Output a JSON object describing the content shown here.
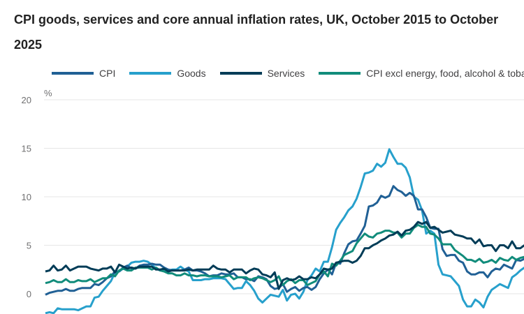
{
  "chart_data": {
    "type": "line",
    "title": "CPI goods, services and core annual inflation rates, UK, October 2015 to October 2025",
    "ylabel": "%",
    "ylim": [
      -2,
      20
    ],
    "yticks": [
      "20",
      "15",
      "10",
      "5",
      "0"
    ],
    "ytick_values": [
      20,
      15,
      10,
      5,
      0
    ],
    "grid": true,
    "legend": "top",
    "x_start": "Oct 2015",
    "x_frequency": "monthly",
    "series": [
      {
        "name": "CPI",
        "color": "#206095",
        "values": [
          -0.1,
          0.1,
          0.2,
          0.3,
          0.3,
          0.5,
          0.3,
          0.3,
          0.5,
          0.6,
          0.6,
          0.6,
          1.0,
          0.9,
          1.2,
          1.6,
          1.8,
          2.3,
          2.3,
          2.7,
          2.9,
          2.6,
          2.6,
          2.9,
          3.0,
          3.0,
          3.1,
          3.0,
          3.0,
          2.7,
          2.5,
          2.4,
          2.4,
          2.4,
          2.5,
          2.7,
          2.4,
          2.4,
          2.3,
          2.1,
          1.8,
          1.9,
          1.9,
          2.1,
          2.0,
          2.0,
          2.1,
          1.7,
          1.7,
          1.5,
          1.5,
          1.3,
          1.8,
          1.7,
          1.5,
          0.8,
          0.5,
          0.6,
          1.0,
          0.2,
          0.5,
          0.7,
          0.3,
          0.6,
          0.7,
          0.4,
          0.7,
          1.5,
          2.1,
          2.5,
          2.0,
          3.2,
          3.1,
          4.2,
          5.1,
          5.4,
          5.5,
          6.2,
          7.0,
          9.0,
          9.1,
          9.4,
          10.1,
          9.9,
          10.1,
          11.1,
          10.7,
          10.5,
          10.1,
          10.4,
          10.1,
          8.7,
          8.7,
          7.9,
          6.8,
          6.7,
          6.7,
          4.6,
          3.9,
          4.0,
          4.0,
          3.4,
          3.2,
          2.3,
          2.0,
          2.0,
          2.2,
          2.2,
          1.7,
          2.3,
          2.6,
          2.5,
          3.0,
          2.8,
          2.6,
          3.5,
          3.4,
          3.6,
          3.8,
          3.8,
          3.8,
          3.6
        ]
      },
      {
        "name": "Goods",
        "color": "#27a0cc",
        "values": [
          -2.0,
          -1.9,
          -2.0,
          -1.5,
          -1.6,
          -1.6,
          -1.6,
          -1.6,
          -1.7,
          -1.5,
          -1.3,
          -1.3,
          -0.4,
          -0.3,
          0.3,
          0.8,
          1.3,
          2.2,
          2.3,
          2.6,
          2.8,
          3.2,
          3.3,
          3.3,
          3.4,
          3.3,
          3.0,
          2.6,
          2.4,
          2.4,
          2.4,
          2.5,
          2.5,
          2.8,
          2.5,
          2.3,
          1.4,
          1.4,
          1.4,
          1.5,
          1.5,
          1.6,
          1.6,
          1.6,
          1.5,
          1.0,
          0.5,
          0.6,
          0.6,
          1.3,
          0.9,
          0.3,
          -0.5,
          -0.9,
          -0.5,
          -0.1,
          -0.2,
          -0.3,
          0.4,
          -0.7,
          -0.1,
          0.0,
          -0.5,
          0.2,
          1.4,
          1.9,
          2.6,
          2.3,
          3.3,
          3.3,
          4.8,
          6.6,
          7.3,
          7.9,
          8.6,
          9.0,
          9.8,
          11.0,
          12.4,
          12.5,
          12.7,
          13.4,
          13.1,
          13.5,
          14.9,
          14.1,
          13.4,
          13.4,
          13.0,
          12.0,
          10.0,
          9.7,
          8.6,
          6.2,
          6.5,
          6.2,
          3.0,
          2.0,
          1.9,
          1.8,
          1.3,
          0.8,
          -0.6,
          -1.3,
          -1.3,
          -0.6,
          -0.9,
          -1.4,
          -0.3,
          0.4,
          0.7,
          1.0,
          0.8,
          0.6,
          1.7,
          2.0,
          2.4,
          2.7,
          2.8,
          2.9,
          2.6
        ]
      },
      {
        "name": "Services",
        "color": "#003c57",
        "values": [
          2.3,
          2.4,
          2.9,
          2.4,
          2.5,
          2.9,
          2.4,
          2.6,
          2.8,
          2.8,
          2.8,
          2.6,
          2.5,
          2.4,
          2.6,
          2.6,
          2.8,
          2.2,
          3.0,
          2.8,
          2.6,
          2.7,
          2.6,
          2.8,
          2.8,
          2.8,
          2.8,
          2.5,
          2.5,
          2.6,
          2.3,
          2.4,
          2.4,
          2.4,
          2.4,
          2.5,
          2.4,
          2.5,
          2.5,
          2.5,
          2.5,
          2.9,
          2.6,
          2.5,
          2.5,
          2.2,
          2.5,
          2.5,
          2.5,
          2.1,
          2.4,
          2.6,
          2.5,
          2.0,
          1.9,
          1.7,
          2.2,
          0.5,
          1.4,
          1.6,
          1.4,
          1.5,
          1.8,
          1.5,
          1.5,
          1.7,
          1.6,
          2.0,
          2.6,
          2.5,
          2.6,
          3.2,
          3.3,
          3.4,
          3.4,
          3.2,
          3.4,
          3.9,
          4.7,
          4.7,
          5.0,
          5.2,
          5.5,
          5.7,
          6.0,
          6.1,
          6.4,
          6.0,
          6.5,
          6.6,
          6.9,
          7.4,
          7.2,
          7.4,
          6.8,
          6.9,
          6.6,
          6.3,
          6.4,
          6.5,
          6.1,
          6.0,
          5.9,
          5.7,
          5.7,
          5.2,
          5.6,
          4.9,
          5.0,
          5.0,
          4.4,
          5.0,
          5.0,
          4.7,
          5.4,
          4.7,
          4.7,
          5.0,
          4.7,
          4.7,
          4.5
        ]
      },
      {
        "name": "CPI excl energy, food, alcohol & tobacco",
        "color": "#118c7b",
        "values": [
          1.1,
          1.2,
          1.4,
          1.2,
          1.2,
          1.5,
          1.2,
          1.2,
          1.4,
          1.3,
          1.3,
          1.5,
          1.2,
          1.4,
          1.6,
          1.6,
          2.0,
          1.8,
          2.4,
          2.6,
          2.4,
          2.4,
          2.7,
          2.7,
          2.7,
          2.7,
          2.5,
          2.7,
          2.4,
          2.3,
          2.1,
          2.1,
          1.9,
          1.9,
          2.1,
          1.9,
          1.9,
          1.8,
          1.9,
          1.9,
          1.8,
          1.8,
          1.8,
          1.7,
          1.8,
          1.9,
          1.5,
          1.7,
          1.7,
          1.7,
          1.4,
          1.6,
          1.7,
          1.6,
          1.4,
          1.2,
          1.4,
          1.8,
          0.9,
          1.3,
          1.5,
          1.1,
          1.4,
          1.4,
          0.9,
          1.1,
          1.3,
          2.0,
          2.3,
          1.8,
          3.1,
          2.9,
          3.4,
          4.0,
          4.2,
          4.4,
          5.2,
          5.7,
          6.2,
          5.9,
          5.8,
          6.2,
          6.3,
          6.5,
          6.5,
          6.3,
          6.3,
          5.8,
          6.2,
          6.2,
          6.8,
          7.1,
          6.9,
          6.9,
          6.2,
          6.1,
          5.7,
          5.1,
          5.1,
          5.1,
          4.5,
          4.2,
          3.9,
          3.5,
          3.5,
          3.3,
          3.6,
          3.2,
          3.3,
          3.5,
          3.2,
          3.7,
          3.5,
          3.4,
          3.8,
          3.5,
          3.7,
          3.8,
          3.6,
          3.5,
          3.4
        ]
      }
    ]
  }
}
